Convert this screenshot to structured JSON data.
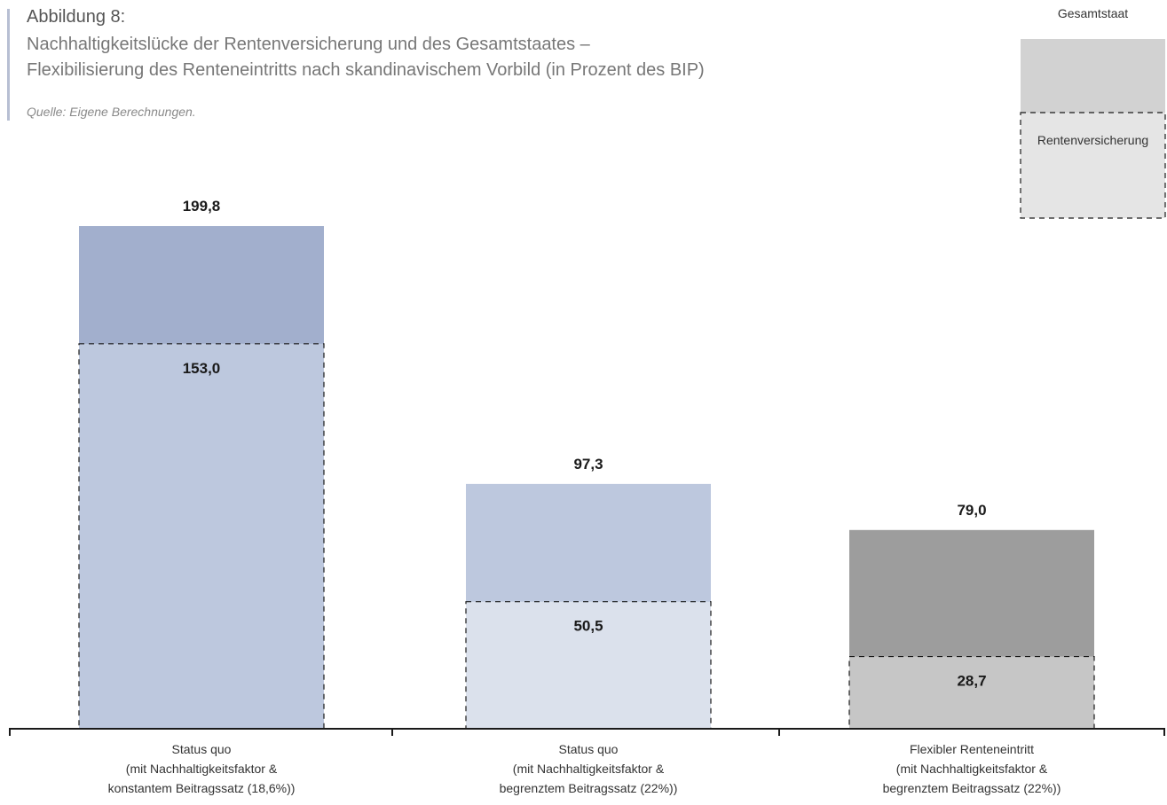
{
  "header": {
    "figure_number": "Abbildung 8:",
    "title_lines": [
      "Nachhaltigkeitslücke der Rentenversicherung und des Gesamtstaates –",
      "Flexibilisierung des Renteneintritts nach skandinavischem Vorbild (in Prozent des BIP)"
    ],
    "source": "Quelle: Eigene Berechnungen."
  },
  "colors": {
    "accent_bar": "#b7bfd3",
    "axis": "#1a1a1a",
    "legend_outer": "#d2d2d2",
    "legend_inner": "#e5e5e5"
  },
  "legend": {
    "outer_label": "Gesamtstaat",
    "inner_label": "Rentenversicherung"
  },
  "chart_data": {
    "type": "bar",
    "title": "Nachhaltigkeitslücke der Rentenversicherung und des Gesamtstaates – Flexibilisierung des Renteneintritts nach skandinavischem Vorbild (in Prozent des BIP)",
    "ylabel": "",
    "xlabel": "",
    "ylim": [
      0,
      200
    ],
    "grid": false,
    "legend_position": "top-right",
    "categories": [
      [
        "Status quo",
        "(mit Nachhaltigkeitsfaktor &",
        "konstantem Beitragssatz (18,6%))"
      ],
      [
        "Status quo",
        "(mit Nachhaltigkeitsfaktor &",
        "begrenztem Beitragssatz (22%))"
      ],
      [
        "Flexibler Renteneintritt",
        "(mit Nachhaltigkeitsfaktor &",
        "begrenztem Beitragssatz (22%))"
      ]
    ],
    "series": [
      {
        "name": "Gesamtstaat",
        "values": [
          199.8,
          97.3,
          79.0
        ],
        "labels": [
          "199,8",
          "97,3",
          "79,0"
        ],
        "colors": [
          "#a2afcd",
          "#bdc8de",
          "#9d9d9d"
        ]
      },
      {
        "name": "Rentenversicherung",
        "values": [
          153.0,
          50.5,
          28.7
        ],
        "labels": [
          "153,0",
          "50,5",
          "28,7"
        ],
        "colors": [
          "#bdc8de",
          "#dbe1ec",
          "#c6c6c6"
        ]
      }
    ]
  }
}
